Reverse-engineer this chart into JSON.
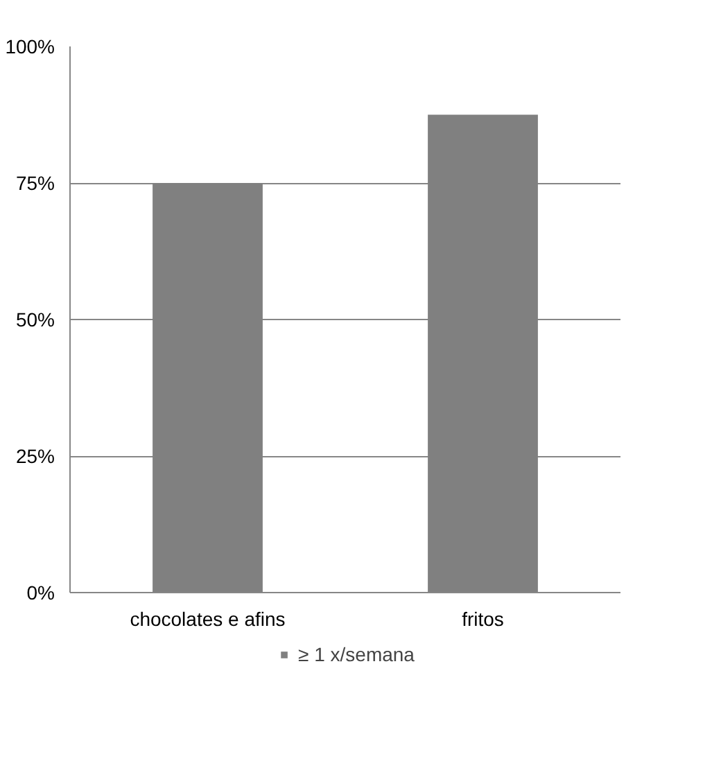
{
  "chart_data": {
    "type": "bar",
    "categories": [
      "chocolates e afins",
      "fritos"
    ],
    "series": [
      {
        "name": "≥ 1 x/semana",
        "color": "#808080",
        "values": [
          75,
          87.5
        ]
      }
    ],
    "ylim": [
      0,
      100
    ],
    "yticks": [
      {
        "value": 0,
        "label": "0%"
      },
      {
        "value": 25,
        "label": "25%"
      },
      {
        "value": 50,
        "label": "50%"
      },
      {
        "value": 75,
        "label": "75%"
      },
      {
        "value": 100,
        "label": "100%"
      }
    ],
    "grid": "y",
    "legend": "bottom"
  }
}
